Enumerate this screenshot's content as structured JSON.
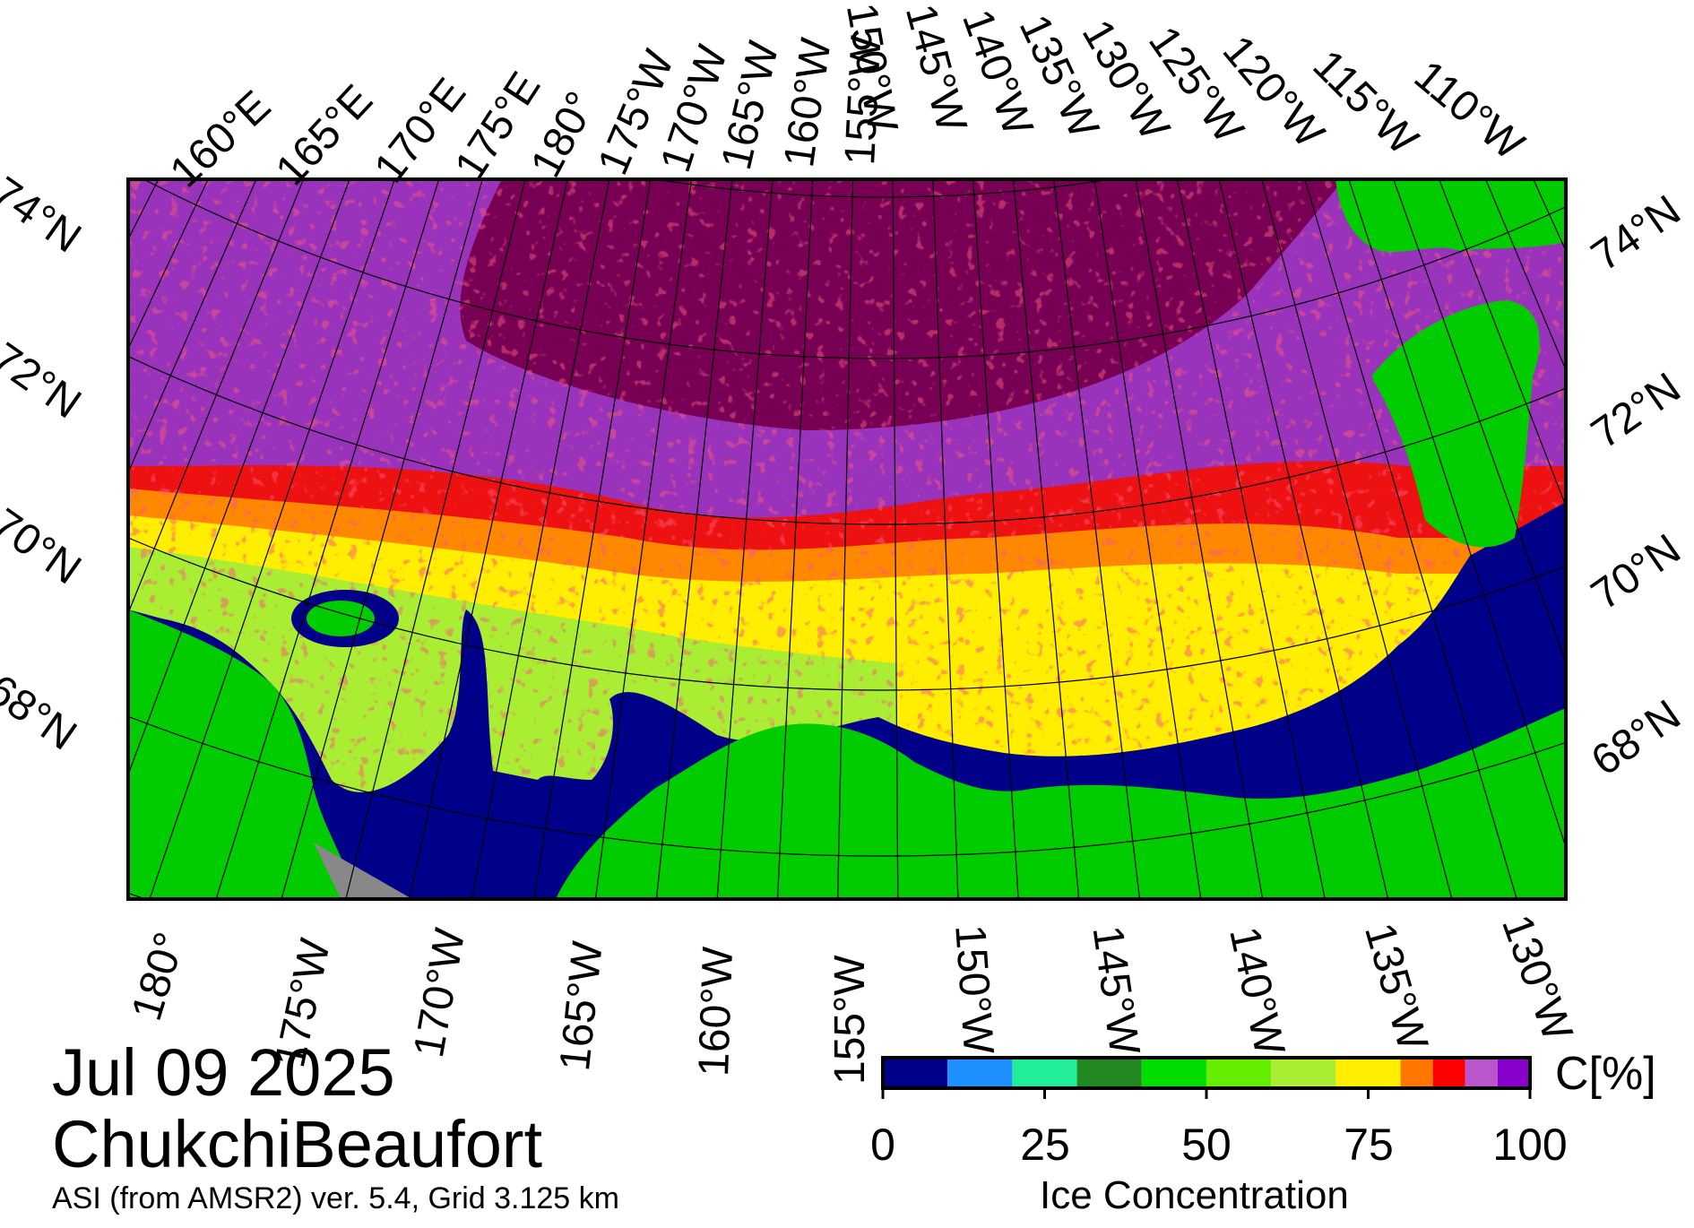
{
  "title": {
    "date": "Jul 09 2025",
    "region": "ChukchiBeaufort"
  },
  "source_note": "ASI (from AMSR2) ver. 5.4,  Grid 3.125 km",
  "map": {
    "top_longitude_labels": [
      "160°E",
      "165°E",
      "170°E",
      "175°E",
      "180°",
      "175°W",
      "170°W",
      "165°W",
      "160°W",
      "155°W",
      "150°W",
      "145°W",
      "140°W",
      "135°W",
      "130°W",
      "125°W",
      "120°W",
      "115°W",
      "110°W"
    ],
    "bottom_longitude_labels": [
      "180°",
      "175°W",
      "170°W",
      "165°W",
      "160°W",
      "155°W",
      "150°W",
      "145°W",
      "140°W",
      "135°W",
      "130°W"
    ],
    "left_latitude_labels": [
      "74°N",
      "72°N",
      "70°N",
      "68°N"
    ],
    "right_latitude_labels": [
      "74°N",
      "72°N",
      "70°N",
      "68°N"
    ],
    "colors": {
      "land": "#00cc00",
      "open_water": "#000088",
      "missing": "#888888",
      "high_ice": "#770055"
    }
  },
  "colorbar": {
    "title": "Ice Concentration",
    "unit": "C[%]",
    "tick_labels": [
      "0",
      "25",
      "50",
      "75",
      "100"
    ],
    "colors": [
      "#000088",
      "#1e90ff",
      "#22ee99",
      "#228822",
      "#00dd00",
      "#66ee00",
      "#aaee33",
      "#ffee00",
      "#ff7700",
      "#ff0000",
      "#bb55cc",
      "#8800cc"
    ]
  }
}
